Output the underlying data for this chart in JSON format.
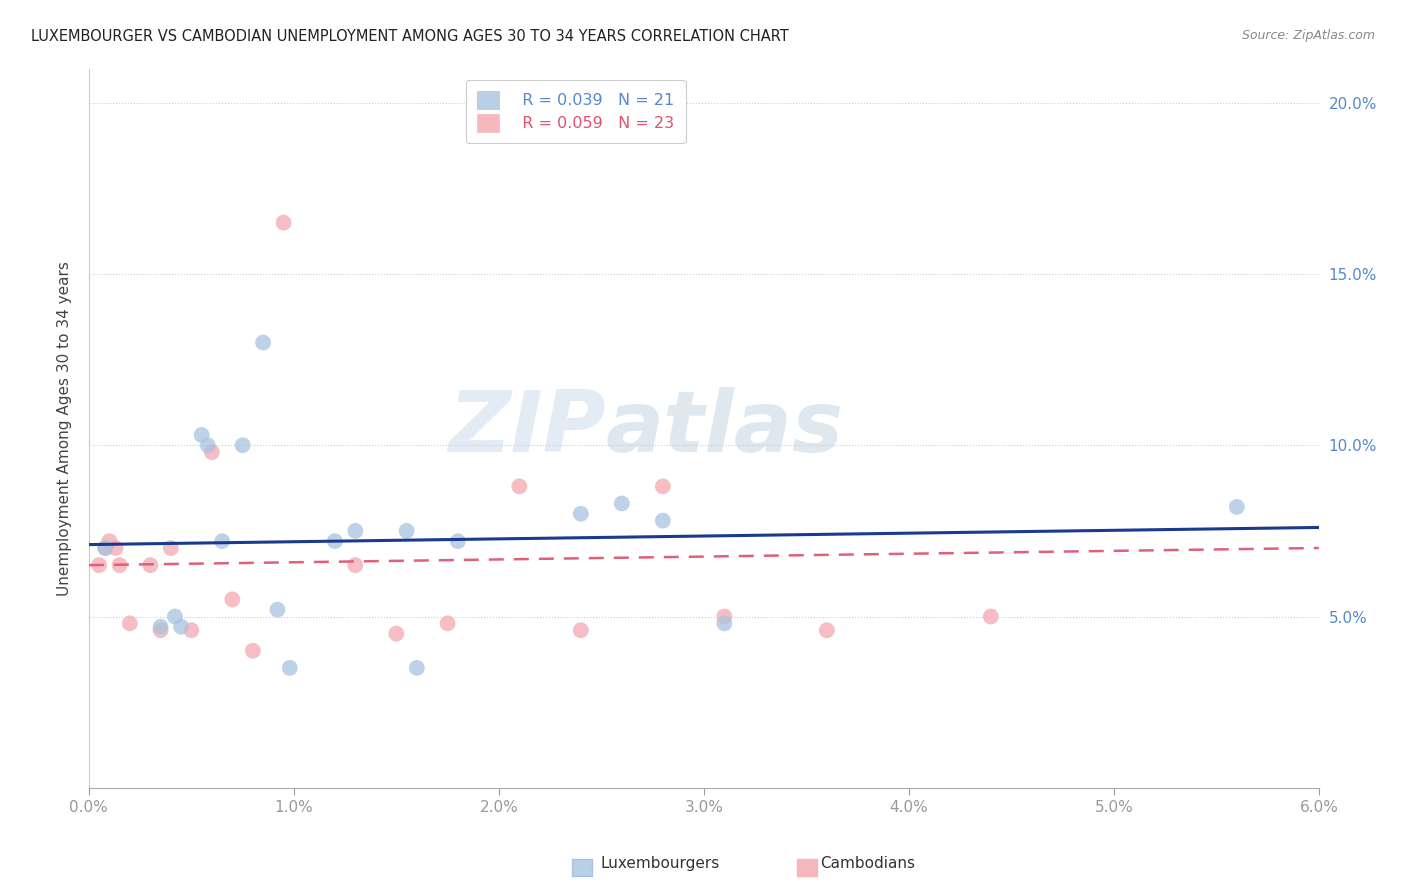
{
  "title": "LUXEMBOURGER VS CAMBODIAN UNEMPLOYMENT AMONG AGES 30 TO 34 YEARS CORRELATION CHART",
  "source": "Source: ZipAtlas.com",
  "ylabel": "Unemployment Among Ages 30 to 34 years",
  "xlim": [
    0.0,
    0.06
  ],
  "ylim": [
    0.0,
    0.21
  ],
  "xticks": [
    0.0,
    0.01,
    0.02,
    0.03,
    0.04,
    0.05,
    0.06
  ],
  "yticks": [
    0.05,
    0.1,
    0.15,
    0.2
  ],
  "lux_color": "#A8C4E0",
  "cam_color": "#F4A7B0",
  "lux_line_color": "#1A3A8F",
  "cam_line_color": "#E0607A",
  "lux_R": 0.039,
  "lux_N": 21,
  "cam_R": 0.059,
  "cam_N": 23,
  "lux_scatter_x": [
    0.0008,
    0.0035,
    0.0042,
    0.0045,
    0.0055,
    0.0058,
    0.0065,
    0.0075,
    0.0085,
    0.0092,
    0.0098,
    0.012,
    0.013,
    0.0155,
    0.016,
    0.018,
    0.024,
    0.026,
    0.028,
    0.031,
    0.056
  ],
  "lux_scatter_y": [
    0.07,
    0.047,
    0.05,
    0.047,
    0.103,
    0.1,
    0.072,
    0.1,
    0.13,
    0.052,
    0.035,
    0.072,
    0.075,
    0.075,
    0.035,
    0.072,
    0.08,
    0.083,
    0.078,
    0.048,
    0.082
  ],
  "cam_scatter_x": [
    0.0005,
    0.0008,
    0.001,
    0.0013,
    0.0015,
    0.002,
    0.003,
    0.0035,
    0.004,
    0.005,
    0.006,
    0.007,
    0.008,
    0.0095,
    0.013,
    0.015,
    0.0175,
    0.021,
    0.024,
    0.028,
    0.031,
    0.036,
    0.044
  ],
  "cam_scatter_y": [
    0.065,
    0.07,
    0.072,
    0.07,
    0.065,
    0.048,
    0.065,
    0.046,
    0.07,
    0.046,
    0.098,
    0.055,
    0.04,
    0.165,
    0.065,
    0.045,
    0.048,
    0.088,
    0.046,
    0.088,
    0.05,
    0.046,
    0.05
  ],
  "background_color": "#FFFFFF",
  "grid_color": "#CCCCCC",
  "watermark_zip": "ZIP",
  "watermark_atlas": "atlas",
  "marker_size": 130
}
